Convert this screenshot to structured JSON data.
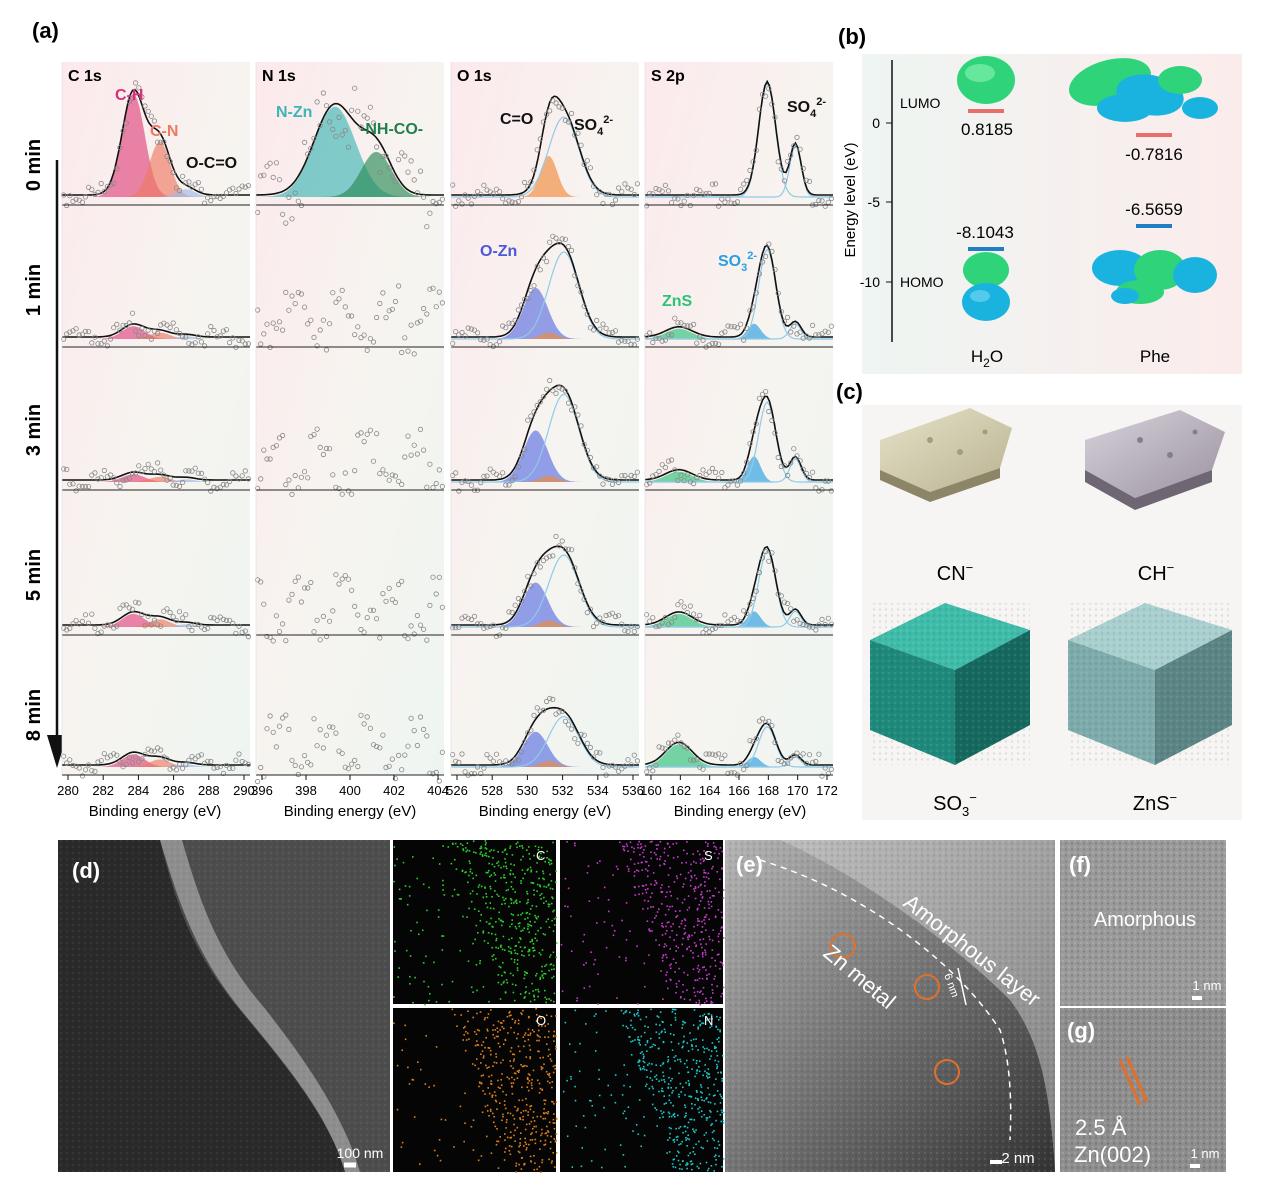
{
  "panel_tags": {
    "a": "(a)",
    "b": "(b)",
    "c": "(c)",
    "d": "(d)",
    "e": "(e)",
    "f": "(f)",
    "g": "(g)"
  },
  "xps": {
    "time_rows": [
      "0 min",
      "1 min",
      "3 min",
      "5 min",
      "8 min"
    ],
    "columns": [
      {
        "title": "C 1s",
        "ticks": [
          "280",
          "282",
          "284",
          "286",
          "288",
          "290"
        ],
        "xlabel": "Binding energy (eV)"
      },
      {
        "title": "N 1s",
        "ticks": [
          "396",
          "398",
          "400",
          "402",
          "404"
        ],
        "xlabel": "Binding energy (eV)"
      },
      {
        "title": "O 1s",
        "ticks": [
          "526",
          "528",
          "530",
          "532",
          "534",
          "536"
        ],
        "xlabel": "Binding energy (eV)"
      },
      {
        "title": "S 2p",
        "ticks": [
          "160",
          "162",
          "164",
          "166",
          "168",
          "170",
          "172"
        ],
        "xlabel": "Binding energy (eV)"
      }
    ],
    "peak_labels": {
      "ch": "C-H",
      "cn": "C-N",
      "occo": "O-C=O",
      "nzn": "N-Zn",
      "nhco": "-NH-CO-",
      "co": "C=O",
      "so4": "SO",
      "so4_sub": "4",
      "so4_sup": "2-",
      "ozn": "O-Zn",
      "s_so4": "SO",
      "s_so4_sub": "4",
      "s_so4_sup": "2-",
      "zns": "ZnS",
      "so3": "SO",
      "so3_sub": "3",
      "so3_sup": "2-"
    },
    "colors": {
      "ch": "#e0457e",
      "cn": "#ee7a62",
      "nzn": "#3fb5b5",
      "nhco": "#2a8a55",
      "ozn": "#5a6fe0",
      "co": "#f08a3c",
      "so3": "#2a9ee0",
      "zns": "#2ec27a"
    }
  },
  "energy": {
    "ylabel": "Energy level (eV)",
    "yticks": [
      "0",
      "-5",
      "-10"
    ],
    "lumo": "LUMO",
    "homo": "HOMO",
    "h2o": {
      "name": "H",
      "sub": "2",
      "tail": "O",
      "lumo_value": "0.8185",
      "homo_value": "-8.1043"
    },
    "phe": {
      "name": "Phe",
      "lumo_value": "-0.7816",
      "homo_value": "-6.5659"
    },
    "lumo_color": "#e8706a",
    "homo_color": "#1f7fc2"
  },
  "fragments": {
    "cn": {
      "base": "CN",
      "sup": "−"
    },
    "ch": {
      "base": "CH",
      "sup": "−"
    },
    "so3": {
      "base": "SO",
      "sub": "3",
      "sup": "−"
    },
    "zns": {
      "base": "ZnS",
      "sup": "−"
    }
  },
  "sem": {
    "scale": "100 nm"
  },
  "eds": {
    "c": "C",
    "s": "S",
    "o": "O",
    "n": "N",
    "colors": {
      "c": "#2bd12b",
      "s": "#c83ad0",
      "o": "#e0801c",
      "n": "#1cc8c8"
    }
  },
  "tem": {
    "amorphous_layer": "Amorphous layer",
    "zn_metal": "Zn metal",
    "thickness": "6 nm",
    "scale": "2 nm",
    "f_label": "Amorphous",
    "f_scale": "1 nm",
    "g_spacing": "2.5 Å",
    "g_plane": "Zn(002)",
    "g_scale": "1 nm"
  }
}
